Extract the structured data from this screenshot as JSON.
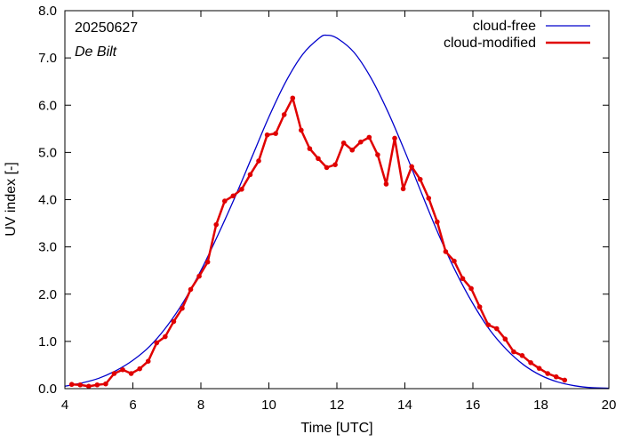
{
  "chart_data": {
    "type": "line",
    "annotations": {
      "date": "20250627",
      "location": "De Bilt"
    },
    "xlabel": "Time  [UTC]",
    "ylabel": "UV index  [-]",
    "xlim": [
      4,
      20
    ],
    "ylim": [
      0,
      8
    ],
    "x_ticks": [
      4,
      6,
      8,
      10,
      12,
      14,
      16,
      18,
      20
    ],
    "y_ticks": [
      "0.0",
      "1.0",
      "2.0",
      "3.0",
      "4.0",
      "5.0",
      "6.0",
      "7.0",
      "8.0"
    ],
    "grid": false,
    "legend_position": "top-right",
    "series": [
      {
        "name": "cloud-free",
        "color": "#0000cc",
        "style": "line",
        "x": [
          4.0,
          4.5,
          5.0,
          5.5,
          6.0,
          6.5,
          7.0,
          7.5,
          8.0,
          8.5,
          9.0,
          9.5,
          10.0,
          10.5,
          11.0,
          11.5,
          11.7,
          12.0,
          12.5,
          13.0,
          13.5,
          14.0,
          14.5,
          15.0,
          15.5,
          16.0,
          16.5,
          17.0,
          17.5,
          18.0,
          18.5,
          19.0,
          19.5,
          20.0
        ],
        "y": [
          0.05,
          0.12,
          0.22,
          0.38,
          0.6,
          0.9,
          1.32,
          1.85,
          2.5,
          3.25,
          4.05,
          4.9,
          5.75,
          6.5,
          7.08,
          7.43,
          7.48,
          7.42,
          7.12,
          6.58,
          5.86,
          5.02,
          4.12,
          3.25,
          2.47,
          1.8,
          1.24,
          0.82,
          0.5,
          0.28,
          0.14,
          0.06,
          0.02,
          0.01
        ]
      },
      {
        "name": "cloud-modified",
        "color": "#e00000",
        "style": "line-points",
        "x": [
          4.2,
          4.45,
          4.7,
          4.95,
          5.2,
          5.45,
          5.7,
          5.95,
          6.2,
          6.45,
          6.7,
          6.95,
          7.2,
          7.45,
          7.7,
          7.95,
          8.2,
          8.45,
          8.7,
          8.95,
          9.2,
          9.45,
          9.7,
          9.95,
          10.2,
          10.45,
          10.7,
          10.95,
          11.2,
          11.45,
          11.7,
          11.95,
          12.2,
          12.45,
          12.7,
          12.95,
          13.2,
          13.45,
          13.7,
          13.95,
          14.2,
          14.45,
          14.7,
          14.95,
          15.2,
          15.45,
          15.7,
          15.95,
          16.2,
          16.45,
          16.7,
          16.95,
          17.2,
          17.45,
          17.7,
          17.95,
          18.2,
          18.45,
          18.7
        ],
        "y": [
          0.09,
          0.08,
          0.05,
          0.08,
          0.1,
          0.32,
          0.4,
          0.32,
          0.42,
          0.58,
          0.97,
          1.1,
          1.42,
          1.7,
          2.1,
          2.38,
          2.68,
          3.47,
          3.97,
          4.08,
          4.22,
          4.53,
          4.82,
          5.37,
          5.4,
          5.8,
          6.15,
          5.47,
          5.08,
          4.87,
          4.68,
          4.74,
          5.2,
          5.05,
          5.22,
          5.32,
          4.95,
          4.33,
          5.3,
          4.23,
          4.7,
          4.43,
          4.03,
          3.53,
          2.9,
          2.7,
          2.33,
          2.12,
          1.73,
          1.35,
          1.27,
          1.05,
          0.78,
          0.7,
          0.55,
          0.43,
          0.32,
          0.25,
          0.18
        ]
      }
    ]
  }
}
